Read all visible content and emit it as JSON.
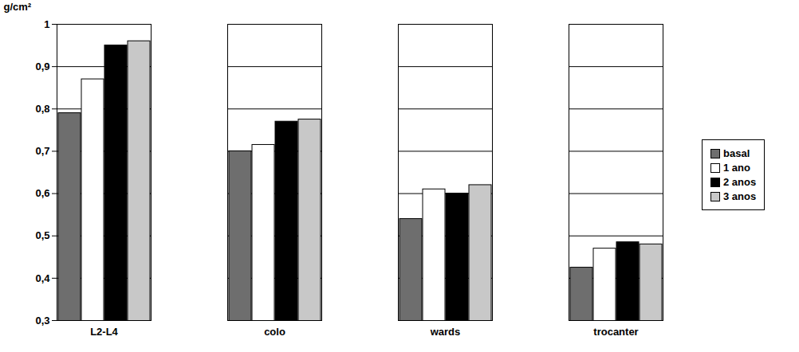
{
  "chart_data": {
    "type": "bar",
    "y_label": "g/cm²",
    "categories": [
      "L2-L4",
      "colo",
      "wards",
      "trocanter"
    ],
    "series": [
      {
        "name": "basal",
        "color": "#6e6e6e",
        "values": [
          0.79,
          0.7,
          0.54,
          0.425
        ]
      },
      {
        "name": "1 ano",
        "color": "#ffffff",
        "values": [
          0.87,
          0.715,
          0.61,
          0.47
        ]
      },
      {
        "name": "2 anos",
        "color": "#000000",
        "values": [
          0.95,
          0.77,
          0.6,
          0.485
        ]
      },
      {
        "name": "3 anos",
        "color": "#c8c8c8",
        "values": [
          0.96,
          0.775,
          0.62,
          0.48
        ]
      }
    ],
    "ylim": [
      0.3,
      1
    ],
    "yticks": [
      {
        "value": 0.3,
        "label": "0,3"
      },
      {
        "value": 0.4,
        "label": "0,4"
      },
      {
        "value": 0.5,
        "label": "0,5"
      },
      {
        "value": 0.6,
        "label": "0,6"
      },
      {
        "value": 0.7,
        "label": "0,7"
      },
      {
        "value": 0.8,
        "label": "0,8"
      },
      {
        "value": 0.9,
        "label": "0,9"
      },
      1
    ],
    "grid": true,
    "legend": "right"
  }
}
